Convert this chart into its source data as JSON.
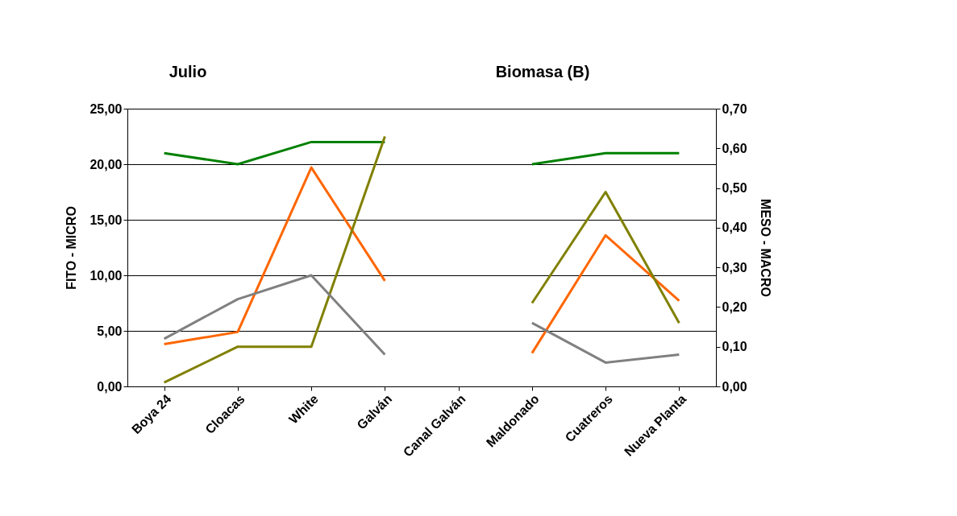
{
  "chart_data": {
    "type": "line",
    "title": "Julio",
    "subtitle": "Biomasa (B)",
    "ylabel": "FITO - MICRO",
    "y2label": "MESO - MACRO",
    "categories": [
      "Boya 24",
      "Cloacas",
      "White",
      "Galván",
      "Canal Galván",
      "Maldonado",
      "Cuatreros",
      "Nueva Planta"
    ],
    "series": [
      {
        "color": "#008000",
        "values": [
          21.0,
          20.0,
          22.0,
          22.0,
          null,
          20.0,
          21.0,
          21.0
        ]
      },
      {
        "color": "#ff6600",
        "values": [
          3.8,
          4.9,
          19.7,
          9.5,
          null,
          3.0,
          13.6,
          7.7
        ]
      },
      {
        "color": "#808000",
        "axis": "y2",
        "values": [
          0.01,
          0.1,
          0.1,
          0.63,
          null,
          0.21,
          0.49,
          0.16
        ]
      },
      {
        "color": "#808080",
        "axis": "y2",
        "values": [
          0.12,
          0.22,
          0.28,
          0.08,
          null,
          0.16,
          0.06,
          0.08
        ]
      }
    ],
    "ylim": [
      0,
      25
    ],
    "yticks": [
      {
        "value": 0,
        "label": "0,00"
      },
      {
        "value": 5,
        "label": "5,00"
      },
      {
        "value": 10,
        "label": "10,00"
      },
      {
        "value": 15,
        "label": "15,00"
      },
      {
        "value": 20,
        "label": "20,00"
      },
      {
        "value": 25,
        "label": "25,00"
      }
    ],
    "y2lim": [
      0,
      0.7
    ],
    "y2ticks": [
      {
        "value": 0,
        "label": "0,00"
      },
      {
        "value": 0.1,
        "label": "0,10"
      },
      {
        "value": 0.2,
        "label": "0,20"
      },
      {
        "value": 0.3,
        "label": "0,30"
      },
      {
        "value": 0.4,
        "label": "0,40"
      },
      {
        "value": 0.5,
        "label": "0,50"
      },
      {
        "value": 0.6,
        "label": "0,60"
      },
      {
        "value": 0.7,
        "label": "0,70"
      }
    ],
    "grid": "y",
    "legend": false,
    "marker": "none",
    "line_style": "solid"
  }
}
